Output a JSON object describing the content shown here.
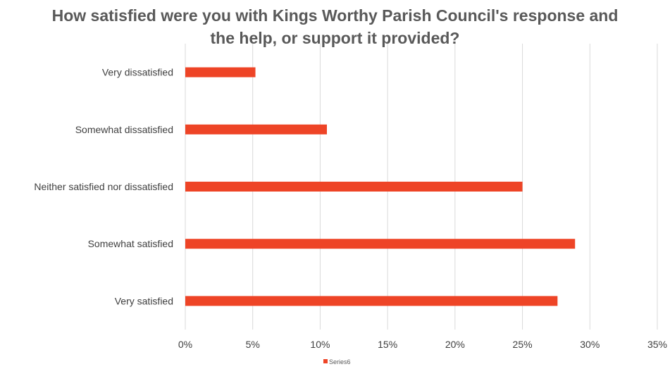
{
  "chart_data": {
    "type": "bar",
    "orientation": "horizontal",
    "title_lines": [
      "How satisfied were you with Kings Worthy Parish Council's response and",
      "the help, or support it provided?"
    ],
    "categories": [
      "Very dissatisfied",
      "Somewhat dissatisfied",
      "Neither satisfied nor dissatisfied",
      "Somewhat satisfied",
      "Very satisfied"
    ],
    "series": [
      {
        "name": "Series6",
        "values": [
          0.052,
          0.105,
          0.25,
          0.289,
          0.276
        ]
      }
    ],
    "xlim": [
      0,
      0.35
    ],
    "x_ticks": [
      0,
      0.05,
      0.1,
      0.15,
      0.2,
      0.25,
      0.3,
      0.35
    ],
    "x_tick_labels": [
      "0%",
      "5%",
      "10%",
      "15%",
      "20%",
      "25%",
      "30%",
      "35%"
    ],
    "grid": true,
    "legend_position": "bottom",
    "colors": {
      "bar": "#EE4426",
      "grid": "#D9D9D9",
      "text": "#404040",
      "title": "#595959"
    }
  }
}
